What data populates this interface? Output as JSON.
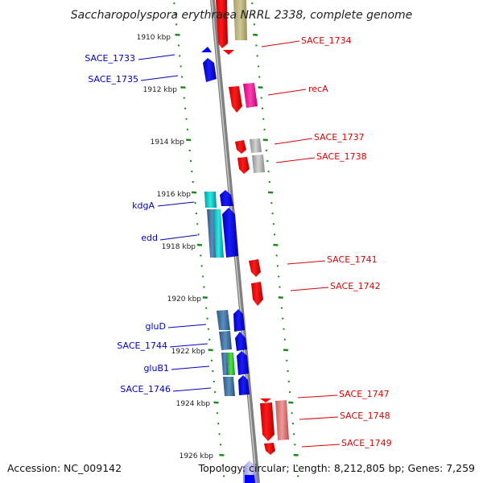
{
  "title": "Saccharopolyspora erythraea NRRL 2338, complete genome",
  "footer": {
    "accession": "Accession: NC_009142",
    "topology": "Topology: circular; Length: 8,212,805 bp; Genes: 7,259"
  },
  "kbp_labels": [
    "1910 kbp",
    "1912 kbp",
    "1914 kbp",
    "1916 kbp",
    "1918 kbp",
    "1920 kbp",
    "1922 kbp",
    "1924 kbp",
    "1926 kbp"
  ],
  "gene_labels_forward": [
    "SACE_1734",
    "recA",
    "SACE_1737",
    "SACE_1738",
    "SACE_1741",
    "SACE_1742",
    "SACE_1747",
    "SACE_1748",
    "SACE_1749"
  ],
  "gene_labels_reverse": [
    "SACE_1733",
    "SACE_1735",
    "kdgA",
    "edd",
    "gluD",
    "SACE_1744",
    "gluB1",
    "SACE_1746"
  ],
  "colors": {
    "axis": "#909090",
    "forward_gene": "#ff0000",
    "reverse_gene": "#0000ff",
    "ticks": "#1a8a1a",
    "forward_label": "#e00000",
    "reverse_label": "#0000c8"
  }
}
